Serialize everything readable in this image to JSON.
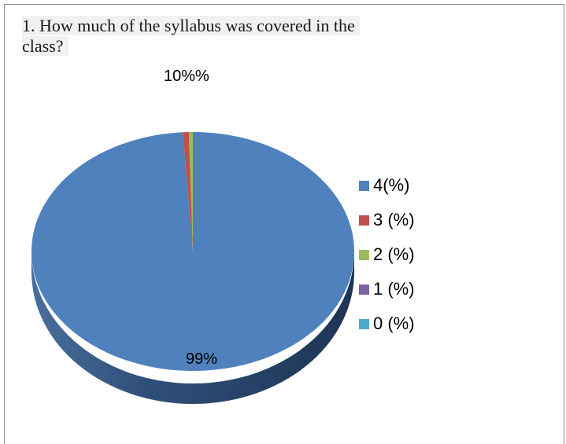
{
  "question": {
    "line1": "1.  How much of the syllabus was covered in the",
    "line2": "class?"
  },
  "chart_data": {
    "type": "pie",
    "title": "10%%",
    "labels": [
      "4(%)",
      "3 (%)",
      "2 (%)",
      "1 (%)",
      "0 (%)"
    ],
    "values": [
      99,
      0.6,
      0.4,
      0,
      0
    ],
    "colors": [
      "#4f81bd",
      "#c0504d",
      "#9bbb59",
      "#8064a2",
      "#4bacc6"
    ],
    "data_labels": [
      "99%"
    ],
    "legend_position": "right",
    "style": "3d"
  }
}
